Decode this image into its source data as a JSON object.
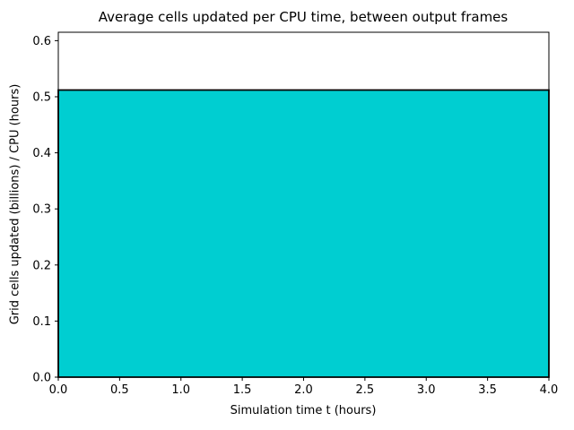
{
  "chart_data": {
    "type": "area",
    "title": "Average cells updated per CPU time, between output frames",
    "xlabel": "Simulation time t (hours)",
    "ylabel": "Grid cells updated (billions) / CPU (hours)",
    "x": [
      0.0,
      4.0
    ],
    "values": [
      0.512,
      0.512
    ],
    "xlim": [
      0.0,
      4.0
    ],
    "ylim": [
      0.0,
      0.615
    ],
    "xticks": [
      0.0,
      0.5,
      1.0,
      1.5,
      2.0,
      2.5,
      3.0,
      3.5,
      4.0
    ],
    "yticks": [
      0.0,
      0.1,
      0.2,
      0.3,
      0.4,
      0.5,
      0.6
    ],
    "tick_format_decimals": 1,
    "fill_color": "#00CED1",
    "edge_color": "#000000",
    "frame_color": "#000000",
    "background": "#ffffff",
    "grid": false,
    "legend_position": "none"
  }
}
